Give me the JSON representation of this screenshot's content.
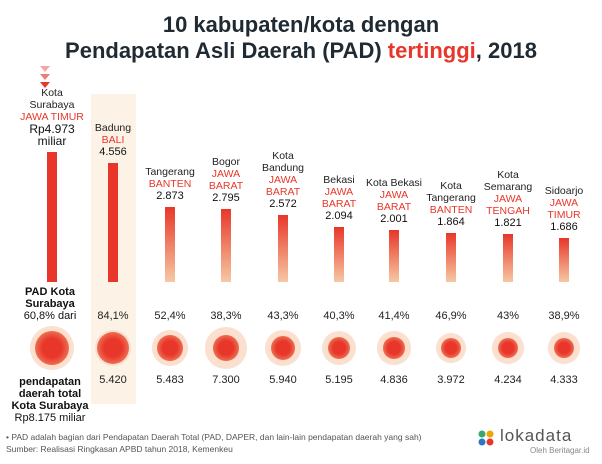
{
  "title": {
    "line1": "10 kabupaten/kota dengan",
    "line2_pre": "Pendapatan Asli Daerah (PAD) ",
    "line2_hl": "tertinggi",
    "line2_post": ", 2018"
  },
  "colors": {
    "accent": "#e8372a",
    "bar_top": "#e8372a",
    "bar_bottom": "#f6c8a3",
    "highlight_col": "#fcf3e6"
  },
  "left_labels": {
    "pad_line1": "PAD Kota",
    "pad_line2": "Surabaya",
    "pad_line3": "60,8% dari",
    "total_line1": "pendapatan",
    "total_line2": "daerah total",
    "total_line3": "Kota Surabaya",
    "total_line4": "Rp8.175 miliar"
  },
  "first_value_extra": {
    "prefix": "Rp",
    "suffix": "miliar"
  },
  "footer": {
    "note": "• PAD adalah bagian dari Pendapatan Daerah Total (PAD, DAPER, dan lain-lain pendapatan daerah yang sah)",
    "source": "Sumber: Realisasi Ringkasan APBD tahun 2018, Kemenkeu"
  },
  "logo": {
    "text": "lokadata",
    "sub": "Oleh Beritagar.id"
  },
  "chart_data": {
    "type": "bar",
    "unit": "miliar",
    "categories": [
      {
        "name": [
          "Kota",
          "Surabaya"
        ],
        "province": [
          "JAWA TIMUR"
        ]
      },
      {
        "name": [
          "Badung"
        ],
        "province": [
          "BALI"
        ]
      },
      {
        "name": [
          "Tangerang"
        ],
        "province": [
          "BANTEN"
        ]
      },
      {
        "name": [
          "Bogor"
        ],
        "province": [
          "JAWA",
          "BARAT"
        ]
      },
      {
        "name": [
          "Kota",
          "Bandung"
        ],
        "province": [
          "JAWA",
          "BARAT"
        ]
      },
      {
        "name": [
          "Bekasi"
        ],
        "province": [
          "JAWA",
          "BARAT"
        ]
      },
      {
        "name": [
          "Kota Bekasi"
        ],
        "province": [
          "JAWA",
          "BARAT"
        ]
      },
      {
        "name": [
          "Kota",
          "Tangerang"
        ],
        "province": [
          "BANTEN"
        ]
      },
      {
        "name": [
          "Kota",
          "Semarang"
        ],
        "province": [
          "JAWA",
          "TENGAH"
        ]
      },
      {
        "name": [
          "Sidoarjo"
        ],
        "province": [
          "JAWA",
          "TIMUR"
        ]
      }
    ],
    "values": [
      4973,
      4556,
      2873,
      2795,
      2572,
      2094,
      2001,
      1864,
      1821,
      1686
    ],
    "value_labels": [
      "4.973",
      "4.556",
      "2.873",
      "2.795",
      "2.572",
      "2.094",
      "2.001",
      "1.864",
      "1.821",
      "1.686"
    ],
    "pad_share_labels": [
      "60,8%",
      "84,1%",
      "52,4%",
      "38,3%",
      "43,3%",
      "40,3%",
      "41,4%",
      "46,9%",
      "43%",
      "38,9%"
    ],
    "pad_share": [
      60.8,
      84.1,
      52.4,
      38.3,
      43.3,
      40.3,
      41.4,
      46.9,
      43,
      38.9
    ],
    "total_revenue_labels": [
      "8.175",
      "5.420",
      "5.483",
      "7.300",
      "5.940",
      "5.195",
      "4.836",
      "3.972",
      "4.234",
      "4.333"
    ],
    "total_revenue": [
      8175,
      5420,
      5483,
      7300,
      5940,
      5195,
      4836,
      3972,
      4234,
      4333
    ],
    "highlighted_index": 1
  }
}
